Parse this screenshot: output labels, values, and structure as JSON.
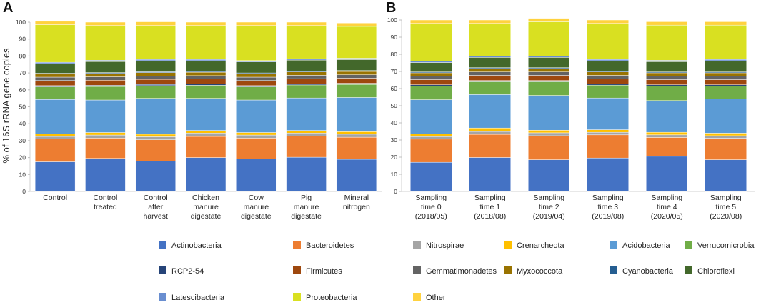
{
  "ylabel": "% of 16S rRNA gene copies",
  "colors": {
    "Actinobacteria": "#4472c4",
    "Bacteroidetes": "#ed7d31",
    "Nitrospirae": "#a5a5a5",
    "Crenarcheota": "#ffc000",
    "Acidobacteria": "#5b9bd5",
    "Verrucomicrobia": "#70ad47",
    "RCP2-54": "#264478",
    "Firmicutes": "#9e480e",
    "Gemmatimonadetes": "#636363",
    "Myxococcota": "#997300",
    "Cyanobacteria": "#255e91",
    "Chloroflexi": "#43682b",
    "Latescibacteria": "#698ed0",
    "Proteobacteria": "#d9e021",
    "Other": "#ffd23f"
  },
  "legend": [
    [
      "Actinobacteria",
      "Bacteroidetes",
      "Nitrospirae",
      "Crenarcheota",
      "Acidobacteria",
      "Verrucomicrobia"
    ],
    [
      "RCP2-54",
      "Firmicutes",
      "Gemmatimonadetes",
      "Myxococcota",
      "Cyanobacteria",
      "Chloroflexi"
    ],
    [
      "Latescibacteria",
      "Proteobacteria",
      "Other"
    ]
  ],
  "chart_data": [
    {
      "panel": "A",
      "type": "bar",
      "stacked": true,
      "ylabel": "% of 16S rRNA gene copies",
      "ylim": [
        0,
        100
      ],
      "yticks": [
        0,
        10,
        20,
        30,
        40,
        50,
        60,
        70,
        80,
        90,
        100
      ],
      "categories": [
        [
          "Control"
        ],
        [
          "Control",
          "treated"
        ],
        [
          "Control",
          "after",
          "harvest"
        ],
        [
          "Chicken",
          "manure",
          "digestate"
        ],
        [
          "Cow",
          "manure",
          "digestate"
        ],
        [
          "Pig",
          "manure",
          "digestate"
        ],
        [
          "Mineral",
          "nitrogen"
        ]
      ],
      "series": [
        {
          "name": "Actinobacteria",
          "values": [
            17.5,
            19.5,
            18.0,
            20.0,
            19.2,
            20.2,
            19.0
          ]
        },
        {
          "name": "Bacteroidetes",
          "values": [
            13.5,
            12.0,
            12.5,
            12.5,
            12.3,
            12.5,
            13.0
          ]
        },
        {
          "name": "Nitrospirae",
          "values": [
            1.5,
            1.8,
            1.8,
            2.0,
            1.8,
            1.8,
            1.8
          ]
        },
        {
          "name": "Crenarcheota",
          "values": [
            1.5,
            1.5,
            1.5,
            1.5,
            1.5,
            1.5,
            1.5
          ]
        },
        {
          "name": "Acidobacteria",
          "values": [
            20.3,
            19.2,
            21.2,
            19.0,
            19.2,
            19.2,
            20.2
          ]
        },
        {
          "name": "Verrucomicrobia",
          "values": [
            7.5,
            8.0,
            7.5,
            7.7,
            7.8,
            7.7,
            7.7
          ]
        },
        {
          "name": "RCP2-54",
          "values": [
            0.7,
            0.7,
            0.7,
            0.7,
            0.7,
            0.7,
            0.7
          ]
        },
        {
          "name": "Firmicutes",
          "values": [
            3.0,
            3.0,
            3.0,
            3.0,
            3.0,
            3.0,
            3.0
          ]
        },
        {
          "name": "Gemmatimonadetes",
          "values": [
            2.0,
            2.0,
            2.0,
            2.0,
            2.0,
            2.0,
            2.0
          ]
        },
        {
          "name": "Myxococcota",
          "values": [
            1.8,
            2.0,
            2.0,
            2.0,
            2.0,
            2.0,
            2.0
          ]
        },
        {
          "name": "Cyanobacteria",
          "values": [
            0.5,
            0.5,
            0.5,
            0.5,
            0.5,
            0.5,
            0.5
          ]
        },
        {
          "name": "Chloroflexi",
          "values": [
            5.7,
            6.5,
            6.5,
            6.3,
            6.5,
            6.5,
            6.5
          ]
        },
        {
          "name": "Latescibacteria",
          "values": [
            0.8,
            0.8,
            0.8,
            0.8,
            0.8,
            0.8,
            0.8
          ]
        },
        {
          "name": "Proteobacteria",
          "values": [
            22.2,
            20.5,
            20.0,
            20.0,
            20.7,
            19.6,
            18.8
          ]
        },
        {
          "name": "Other",
          "values": [
            2.0,
            2.0,
            2.2,
            2.0,
            2.0,
            2.0,
            2.0
          ]
        }
      ]
    },
    {
      "panel": "B",
      "type": "bar",
      "stacked": true,
      "ylim": [
        0,
        100
      ],
      "yticks": [
        0,
        10,
        20,
        30,
        40,
        50,
        60,
        70,
        80,
        90,
        100
      ],
      "categories": [
        [
          "Sampling",
          "time 0",
          "(2018/05)"
        ],
        [
          "Sampling",
          "time 1",
          "(2018/08)"
        ],
        [
          "Sampling",
          "time 2",
          "(2019/04)"
        ],
        [
          "Sampling",
          "time 3",
          "(2019/08)"
        ],
        [
          "Sampling",
          "time 4",
          "(2020/05)"
        ],
        [
          "Sampling",
          "time 5",
          "(2020/08)"
        ]
      ],
      "series": [
        {
          "name": "Actinobacteria",
          "values": [
            17.0,
            19.8,
            18.5,
            19.5,
            20.5,
            18.5
          ]
        },
        {
          "name": "Bacteroidetes",
          "values": [
            13.5,
            13.5,
            14.0,
            13.5,
            11.0,
            12.5
          ]
        },
        {
          "name": "Nitrospirae",
          "values": [
            1.5,
            1.7,
            1.7,
            1.5,
            1.5,
            1.5
          ]
        },
        {
          "name": "Crenarcheota",
          "values": [
            1.5,
            2.0,
            1.5,
            1.5,
            1.5,
            1.5
          ]
        },
        {
          "name": "Acidobacteria",
          "values": [
            20.0,
            19.5,
            20.3,
            18.5,
            18.5,
            20.0
          ]
        },
        {
          "name": "Verrucomicrobia",
          "values": [
            8.0,
            7.5,
            8.0,
            7.5,
            8.5,
            7.5
          ]
        },
        {
          "name": "RCP2-54",
          "values": [
            0.7,
            0.7,
            0.7,
            0.7,
            0.7,
            0.7
          ]
        },
        {
          "name": "Firmicutes",
          "values": [
            3.0,
            3.0,
            3.0,
            3.0,
            3.0,
            3.0
          ]
        },
        {
          "name": "Gemmatimonadetes",
          "values": [
            2.0,
            2.0,
            2.0,
            2.0,
            2.0,
            2.0
          ]
        },
        {
          "name": "Myxococcota",
          "values": [
            2.0,
            2.0,
            2.0,
            2.0,
            2.0,
            2.0
          ]
        },
        {
          "name": "Cyanobacteria",
          "values": [
            0.5,
            0.5,
            0.5,
            0.5,
            0.5,
            0.5
          ]
        },
        {
          "name": "Chloroflexi",
          "values": [
            5.5,
            6.0,
            6.0,
            6.0,
            6.0,
            6.5
          ]
        },
        {
          "name": "Latescibacteria",
          "values": [
            0.8,
            0.8,
            0.8,
            0.8,
            0.8,
            0.8
          ]
        },
        {
          "name": "Proteobacteria",
          "values": [
            22.0,
            19.0,
            20.0,
            21.0,
            20.5,
            20.0
          ]
        },
        {
          "name": "Other",
          "values": [
            2.0,
            2.0,
            2.0,
            2.0,
            2.0,
            2.0
          ]
        }
      ]
    }
  ]
}
